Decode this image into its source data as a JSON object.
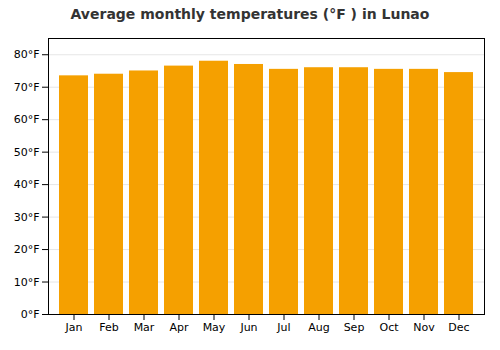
{
  "chart_data": {
    "type": "bar",
    "title": "Average monthly temperatures (°F ) in Lunao",
    "categories": [
      "Jan",
      "Feb",
      "Mar",
      "Apr",
      "May",
      "Jun",
      "Jul",
      "Aug",
      "Sep",
      "Oct",
      "Nov",
      "Dec"
    ],
    "values": [
      73.5,
      74.0,
      75.0,
      76.5,
      78.0,
      77.0,
      75.5,
      76.0,
      76.0,
      75.5,
      75.5,
      74.5
    ],
    "color": "#F5A000",
    "ylim": [
      0,
      85
    ],
    "yticks": [
      {
        "value": 0,
        "label": "0°F"
      },
      {
        "value": 10,
        "label": "10°F"
      },
      {
        "value": 20,
        "label": "20°F"
      },
      {
        "value": 30,
        "label": "30°F"
      },
      {
        "value": 40,
        "label": "40°F"
      },
      {
        "value": 50,
        "label": "50°F"
      },
      {
        "value": 60,
        "label": "60°F"
      },
      {
        "value": 70,
        "label": "70°F"
      },
      {
        "value": 80,
        "label": "80°F"
      }
    ],
    "grid": true
  }
}
